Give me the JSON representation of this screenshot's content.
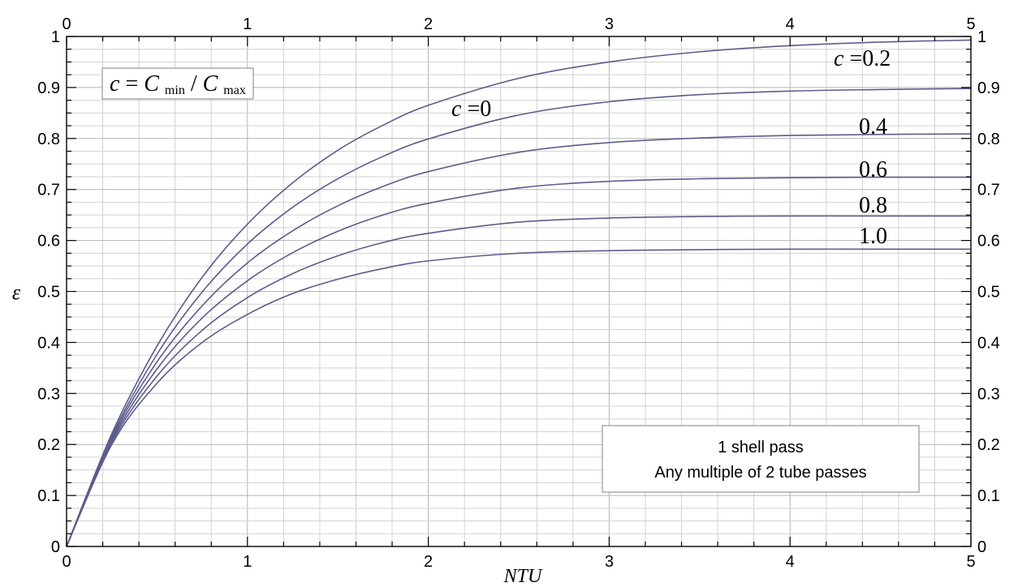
{
  "chart_data": {
    "type": "line",
    "xlabel": "NTU",
    "ylabel": "ε",
    "xlim": [
      0,
      5
    ],
    "ylim": [
      0,
      1
    ],
    "x_ticks": [
      "0",
      "1",
      "2",
      "3",
      "4",
      "5"
    ],
    "y_ticks": [
      "0",
      "0.1",
      "0.2",
      "0.3",
      "0.4",
      "0.5",
      "0.6",
      "0.7",
      "0.8",
      "0.9",
      "1"
    ],
    "grid": true,
    "axes_mirrored": "x ticks on top and bottom, y ticks on left and right",
    "x_samples": [
      0,
      0.25,
      0.5,
      0.75,
      1.0,
      1.25,
      1.5,
      1.75,
      2.0,
      2.5,
      3.0,
      3.5,
      4.0,
      4.5,
      5.0
    ],
    "series": [
      {
        "name": "c=0",
        "label": "c=0",
        "values": [
          0,
          0.221,
          0.393,
          0.528,
          0.632,
          0.713,
          0.777,
          0.826,
          0.865,
          0.918,
          0.95,
          0.97,
          0.982,
          0.989,
          0.993
        ]
      },
      {
        "name": "c=0.2",
        "label": "c=0.2",
        "values": [
          0,
          0.216,
          0.377,
          0.499,
          0.593,
          0.665,
          0.721,
          0.765,
          0.799,
          0.846,
          0.872,
          0.886,
          0.893,
          0.896,
          0.898
        ]
      },
      {
        "name": "0.4",
        "label": "0.4",
        "values": [
          0,
          0.212,
          0.362,
          0.472,
          0.556,
          0.619,
          0.668,
          0.706,
          0.735,
          0.773,
          0.792,
          0.801,
          0.806,
          0.808,
          0.809
        ]
      },
      {
        "name": "0.6",
        "label": "0.6",
        "values": [
          0,
          0.208,
          0.348,
          0.448,
          0.521,
          0.576,
          0.618,
          0.65,
          0.673,
          0.703,
          0.716,
          0.721,
          0.723,
          0.724,
          0.724
        ]
      },
      {
        "name": "0.8",
        "label": "0.8",
        "values": [
          0,
          0.204,
          0.334,
          0.424,
          0.488,
          0.535,
          0.57,
          0.596,
          0.614,
          0.636,
          0.644,
          0.647,
          0.648,
          0.648,
          0.648
        ]
      },
      {
        "name": "1.0",
        "label": "1.0",
        "values": [
          0,
          0.2,
          0.32,
          0.4,
          0.455,
          0.496,
          0.524,
          0.545,
          0.56,
          0.575,
          0.58,
          0.582,
          0.583,
          0.583,
          0.583
        ]
      }
    ],
    "annotations": {
      "c_definition": {
        "c": "c",
        "eq": "=",
        "C1": "C",
        "sub1": "min",
        "slash": "/",
        "C2": "C",
        "sub2": "max"
      },
      "config_line1": "1 shell pass",
      "config_line2": "Any multiple of 2 tube passes"
    },
    "colors": {
      "curve": "#5c5c8c",
      "grid_major": "#b4b4b4",
      "grid_minor": "#d2d2d2"
    }
  }
}
